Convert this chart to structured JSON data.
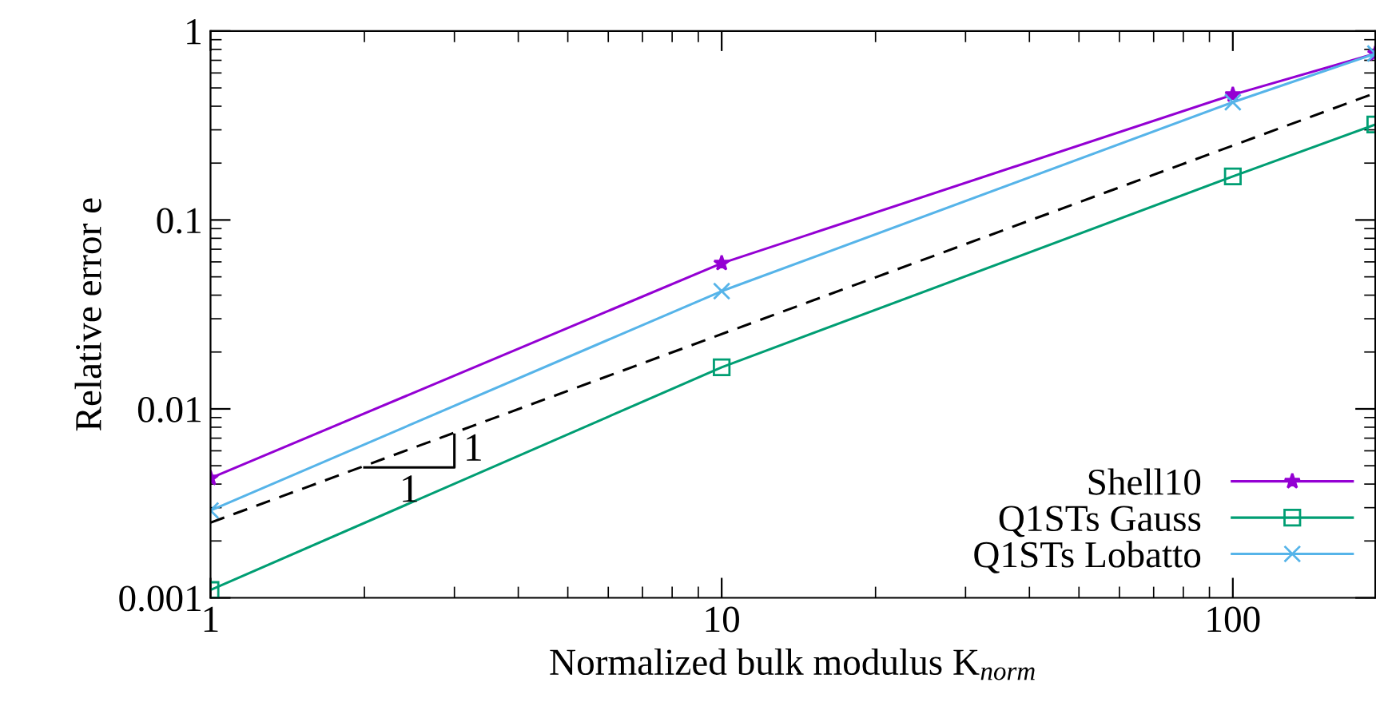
{
  "chart_data": {
    "type": "line",
    "xlabel": "Normalized bulk modulus K$_{norm}$",
    "ylabel": "Relative error e",
    "log": "xy",
    "xlim": [
      1,
      190
    ],
    "ylim": [
      0.001,
      1
    ],
    "xticks": [
      1,
      10,
      100
    ],
    "yticks": [
      0.001,
      0.01,
      0.1,
      1
    ],
    "grid": false,
    "legend": "bottom right",
    "line_style": "solid",
    "series": [
      {
        "name": "Shell10",
        "color": "#9400d3",
        "marker": "star",
        "x": [
          1,
          10,
          100,
          190
        ],
        "values": [
          0.0043,
          0.059,
          0.46,
          0.76
        ]
      },
      {
        "name": "Q1STs Gauss",
        "color": "#009e73",
        "marker": "square",
        "x": [
          1,
          10,
          100,
          190
        ],
        "values": [
          0.0011,
          0.0166,
          0.17,
          0.32
        ]
      },
      {
        "name": "Q1STs Lobatto",
        "color": "#56b4e9",
        "marker": "cross",
        "x": [
          1,
          10,
          100,
          190
        ],
        "values": [
          0.0029,
          0.042,
          0.42,
          0.76
        ]
      },
      {
        "color": "#000000",
        "marker": "none",
        "line_style": "dashed",
        "x": [
          1,
          190
        ],
        "values": [
          0.0025,
          0.47
        ]
      },
      {
        "color": "#000000",
        "marker": "none",
        "x": [
          2,
          3,
          3
        ],
        "values": [
          0.0049,
          0.0049,
          0.0073
        ]
      }
    ],
    "annotations": [
      "1",
      "1"
    ]
  }
}
